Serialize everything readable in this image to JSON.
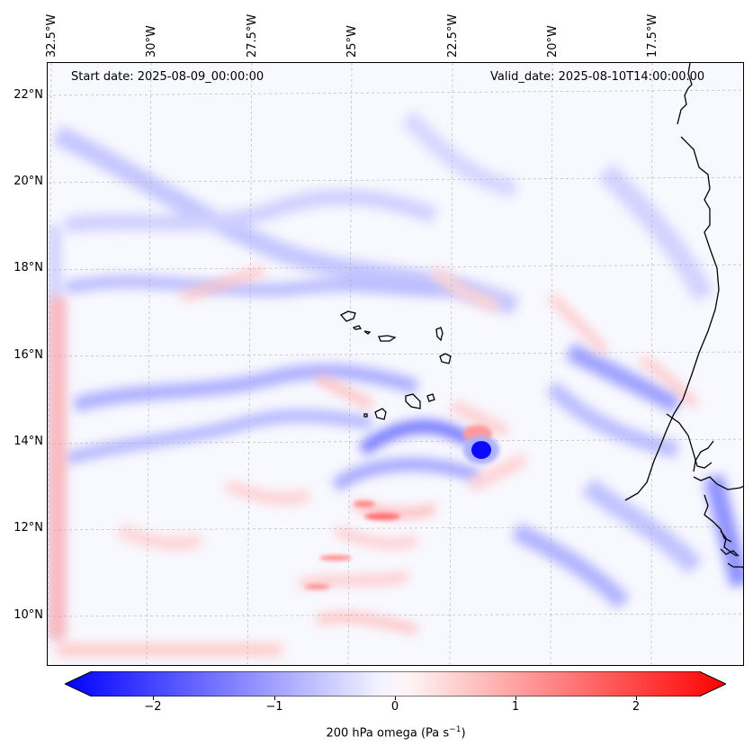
{
  "map": {
    "header_left": "Start date: 2025-08-09_00:00:00",
    "header_right": "Valid_date: 2025-08-10T14:00:00.00",
    "lon_labels": [
      "32.5°W",
      "30°W",
      "27.5°W",
      "25°W",
      "22.5°W",
      "20°W",
      "17.5°W"
    ],
    "lat_labels": [
      "22°N",
      "20°N",
      "18°N",
      "16°N",
      "14°N",
      "12°N",
      "10°N"
    ],
    "field_colors": {
      "negative": "#0000ff",
      "neutral": "#f8f8ff",
      "positive": "#ff0000"
    }
  },
  "colorbar": {
    "label_prefix": "200 hPa omega (Pa s",
    "label_exp": "−1",
    "label_suffix": ")",
    "ticks": [
      "−2",
      "−1",
      "0",
      "1",
      "2"
    ],
    "range": [
      -2.6,
      2.6
    ]
  }
}
